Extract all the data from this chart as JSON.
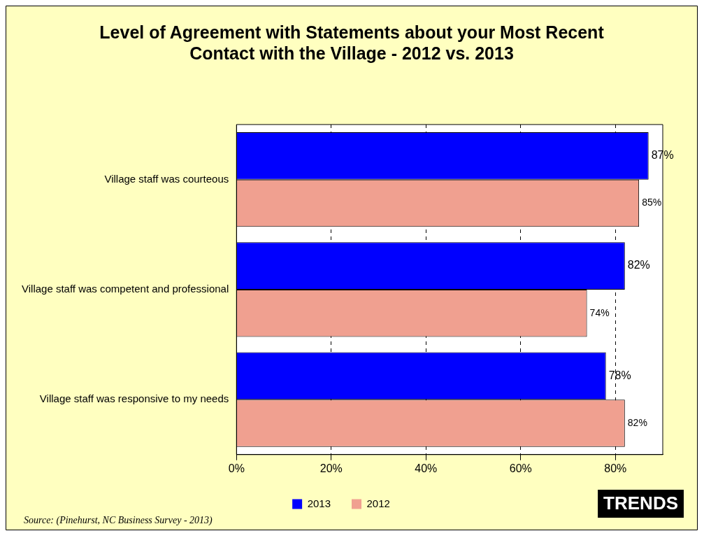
{
  "chart_data": {
    "type": "bar",
    "orientation": "horizontal",
    "title": "Level of Agreement with Statements about your Most Recent Contact with the Village - 2012 vs. 2013",
    "categories": [
      "Village staff was courteous",
      "Village staff was competent and professional",
      "Village staff was responsive to my needs"
    ],
    "series": [
      {
        "name": "2013",
        "color": "#0000ff",
        "values": [
          87,
          82,
          78
        ],
        "value_labels": [
          "87%",
          "82%",
          "78%"
        ]
      },
      {
        "name": "2012",
        "color": "#f0a090",
        "values": [
          85,
          74,
          82
        ],
        "value_labels": [
          "85%",
          "74%",
          "82%"
        ]
      }
    ],
    "xlim": [
      0,
      90
    ],
    "xticks": [
      {
        "value": 0,
        "label": "0%"
      },
      {
        "value": 20,
        "label": "20%"
      },
      {
        "value": 40,
        "label": "40%"
      },
      {
        "value": 60,
        "label": "60%"
      },
      {
        "value": 80,
        "label": "80%"
      }
    ],
    "grid": "x",
    "legend": "bottom",
    "annotations": [
      "Source: (Pinehurst, NC Business Survey - 2013)",
      "TRENDS"
    ]
  }
}
